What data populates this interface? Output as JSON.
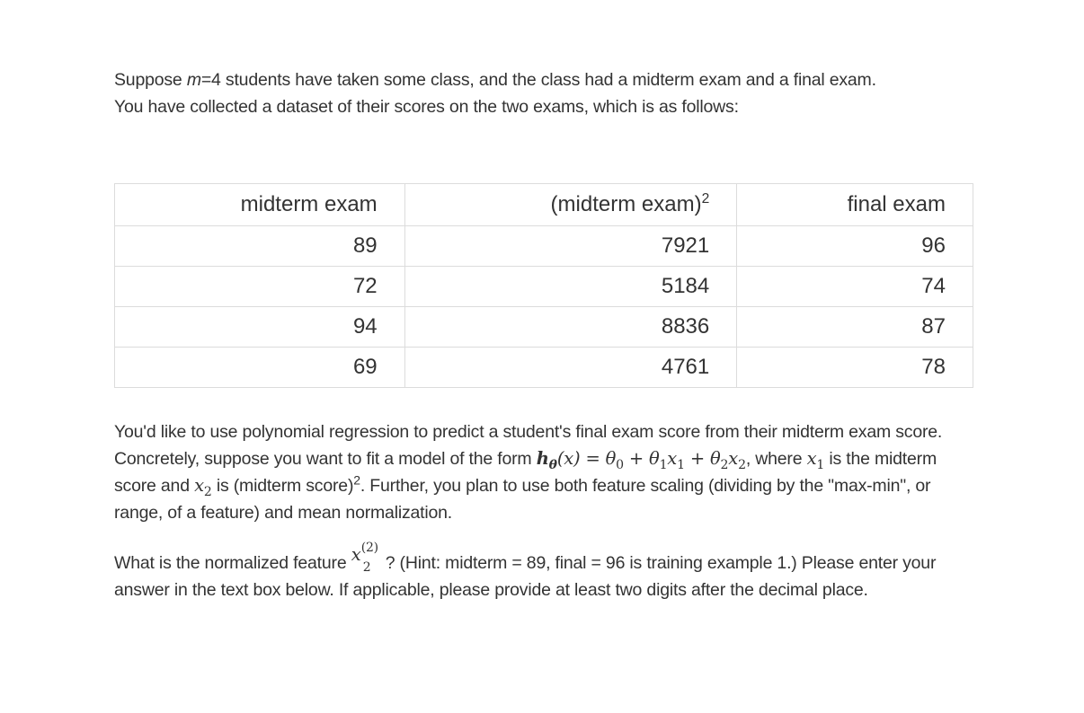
{
  "intro": {
    "line1_pre": "Suppose ",
    "m_var": "m",
    "line1_post": "=4 students have taken some class, and the class had a midterm exam and a final exam.",
    "line2": "You have collected a dataset of their scores on the two exams, which is as follows:"
  },
  "table": {
    "headers": {
      "col1": "midterm exam",
      "col2": "(midterm exam)",
      "col2_sup": "2",
      "col3": "final exam"
    },
    "rows": [
      [
        "89",
        "7921",
        "96"
      ],
      [
        "72",
        "5184",
        "74"
      ],
      [
        "94",
        "8836",
        "87"
      ],
      [
        "69",
        "4761",
        "78"
      ]
    ]
  },
  "para2": {
    "s1": "You'd like to use polynomial regression to predict a student's final exam score from their midterm exam score. Concretely, suppose you want to fit a model of the form ",
    "formula": "h",
    "formula_sub": "θ",
    "formula_rest": "(x) = θ",
    "t0": "0",
    "plus1": " + θ",
    "t1": "1",
    "x1": "x",
    "x1s": "1",
    "plus2": " + θ",
    "t2": "2",
    "x2": "x",
    "x2s": "2",
    "s2": ", where ",
    "s3": " is the midterm score and ",
    "s4": " is (midterm score)",
    "s4_sup": "2",
    "s5": ". Further, you plan to use both feature scaling (dividing by the \"max-min\", or range, of a feature) and mean normalization."
  },
  "para3": {
    "s1": "What is the normalized feature ",
    "var": "x",
    "var_sup": "(2)",
    "var_sub": "2",
    "s2": "? (Hint: midterm = 89, final = 96 is training example 1.) Please enter your answer in the text box below. If applicable, please provide at least two digits after the decimal place."
  }
}
